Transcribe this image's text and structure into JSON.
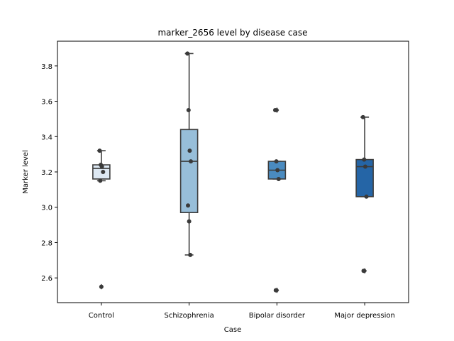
{
  "chart_data": {
    "type": "box",
    "title": "marker_2656 level by disease case",
    "xlabel": "Case",
    "ylabel": "Marker level",
    "ylim": [
      2.46,
      3.94
    ],
    "yticks": [
      "2.6",
      "2.8",
      "3.0",
      "3.2",
      "3.4",
      "3.6",
      "3.8"
    ],
    "grid": false,
    "categories": [
      "Control",
      "Schizophrenia",
      "Bipolar disorder",
      "Major depression"
    ],
    "colors": [
      "#dde8f3",
      "#97bed9",
      "#4a8bc0",
      "#2565a6"
    ],
    "boxes": [
      {
        "q1": 3.16,
        "median": 3.22,
        "q3": 3.24,
        "whisker_low": 3.15,
        "whisker_high": 3.32,
        "fliers": [
          2.55
        ],
        "points": [
          3.32,
          3.24,
          3.23,
          3.2,
          3.15,
          2.55
        ]
      },
      {
        "q1": 2.97,
        "median": 3.26,
        "q3": 3.44,
        "whisker_low": 2.73,
        "whisker_high": 3.87,
        "fliers": [],
        "points": [
          3.87,
          3.55,
          3.32,
          3.26,
          3.01,
          2.92,
          2.73
        ]
      },
      {
        "q1": 3.16,
        "median": 3.21,
        "q3": 3.26,
        "whisker_low": 3.16,
        "whisker_high": 3.26,
        "fliers": [
          3.55,
          2.53
        ],
        "points": [
          3.55,
          3.26,
          3.21,
          3.16,
          2.53
        ]
      },
      {
        "q1": 3.06,
        "median": 3.23,
        "q3": 3.27,
        "whisker_low": 3.06,
        "whisker_high": 3.51,
        "fliers": [
          2.64
        ],
        "points": [
          3.51,
          3.27,
          3.23,
          3.06,
          2.64
        ]
      }
    ]
  }
}
